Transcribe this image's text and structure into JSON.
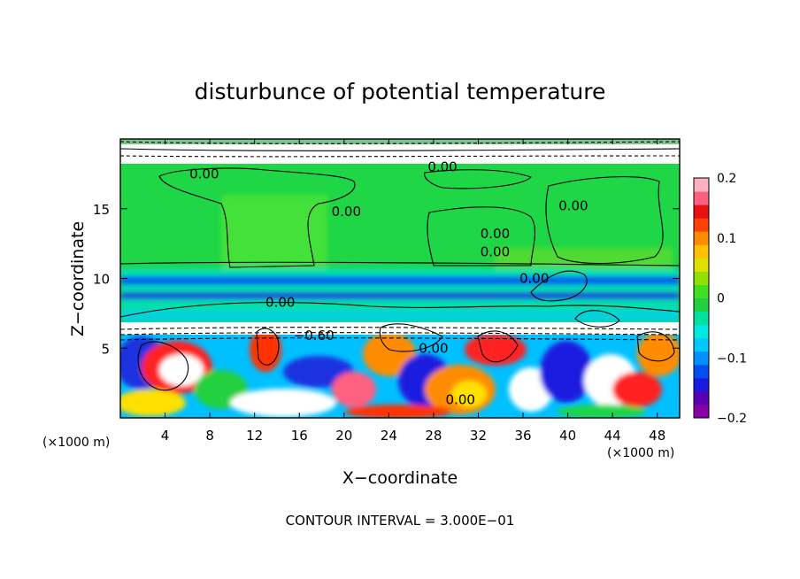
{
  "chart_data": {
    "type": "heatmap",
    "title": "disturbunce of potential temperature",
    "xlabel": "X−coordinate",
    "ylabel": "Z−coordinate",
    "x_unit": "(×1000 m)",
    "x_unit_right": "(×1000 m)",
    "footer": "CONTOUR INTERVAL = 3.000E−01",
    "xlim": [
      0,
      50
    ],
    "ylim": [
      0,
      20
    ],
    "x_ticks": [
      4,
      8,
      12,
      16,
      20,
      24,
      28,
      32,
      36,
      40,
      44,
      48
    ],
    "x_tick_labels": [
      "4",
      "8",
      "12",
      "16",
      "20",
      "24",
      "28",
      "32",
      "36",
      "40",
      "44",
      "48"
    ],
    "y_ticks": [
      5,
      10,
      15
    ],
    "y_tick_labels": [
      "5",
      "10",
      "15"
    ],
    "colorbar": {
      "range": [
        -0.2,
        0.2
      ],
      "ticks": [
        0.2,
        0.1,
        0,
        -0.1,
        -0.2
      ],
      "tick_labels": [
        "0.2",
        "0.1",
        "0",
        "−0.1",
        "−0.2"
      ],
      "colors": [
        "#8a00a8",
        "#5a00b4",
        "#1a1ae0",
        "#0050f0",
        "#0090ff",
        "#00c8ff",
        "#00e8e0",
        "#00e0a0",
        "#20d040",
        "#40e020",
        "#90e000",
        "#e0e000",
        "#ffc000",
        "#ff8c00",
        "#ff4000",
        "#e81010",
        "#ff6080",
        "#ffb0c0"
      ]
    },
    "contour_interval": 0.3,
    "contour_labels": [
      {
        "x": 7.5,
        "z": 17.5,
        "text": "0.00"
      },
      {
        "x": 20.2,
        "z": 14.8,
        "text": "0.00"
      },
      {
        "x": 28.8,
        "z": 18.0,
        "text": "0.00"
      },
      {
        "x": 33.5,
        "z": 13.2,
        "text": "0.00"
      },
      {
        "x": 33.5,
        "z": 11.9,
        "text": "0.00"
      },
      {
        "x": 40.5,
        "z": 15.2,
        "text": "0.00"
      },
      {
        "x": 37.0,
        "z": 10.0,
        "text": "0.00"
      },
      {
        "x": 14.3,
        "z": 8.3,
        "text": "0.00"
      },
      {
        "x": 17.3,
        "z": 5.9,
        "text": "−0.60"
      },
      {
        "x": 28.0,
        "z": 5.0,
        "text": "0.00"
      },
      {
        "x": 30.4,
        "z": 1.3,
        "text": "0.00"
      }
    ],
    "field_description": "near-zero perturbation above z≈7 km with a negative band near z≈9–10 km; strong mixed positive/negative perturbations below z≈7 km"
  }
}
